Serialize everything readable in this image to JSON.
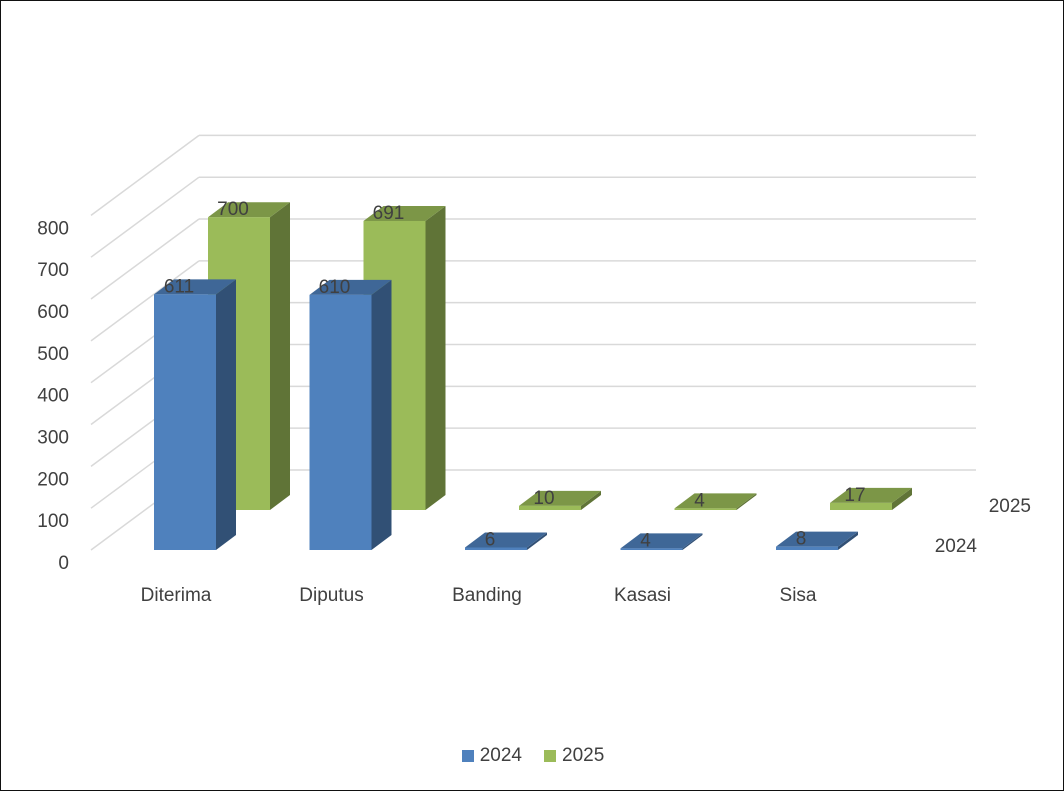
{
  "chart_data": {
    "type": "bar",
    "title": "",
    "xlabel": "",
    "ylabel": "",
    "categories": [
      "Diterima",
      "Diputus",
      "Banding",
      "Kasasi",
      "Sisa"
    ],
    "series": [
      {
        "name": "2024",
        "values": [
          611,
          610,
          6,
          4,
          8
        ],
        "color": "#4f81bd"
      },
      {
        "name": "2025",
        "values": [
          700,
          691,
          10,
          4,
          17
        ],
        "color": "#9bbb59"
      }
    ],
    "y_ticks": [
      "0",
      "100",
      "200",
      "300",
      "400",
      "500",
      "600",
      "700",
      "800"
    ],
    "ylim": [
      0,
      800
    ],
    "grid": true,
    "three_d": true,
    "depth_labels": [
      "2024",
      "2025"
    ],
    "data_labels": true,
    "legend": {
      "position": "bottom",
      "items": [
        "2024",
        "2025"
      ]
    }
  }
}
